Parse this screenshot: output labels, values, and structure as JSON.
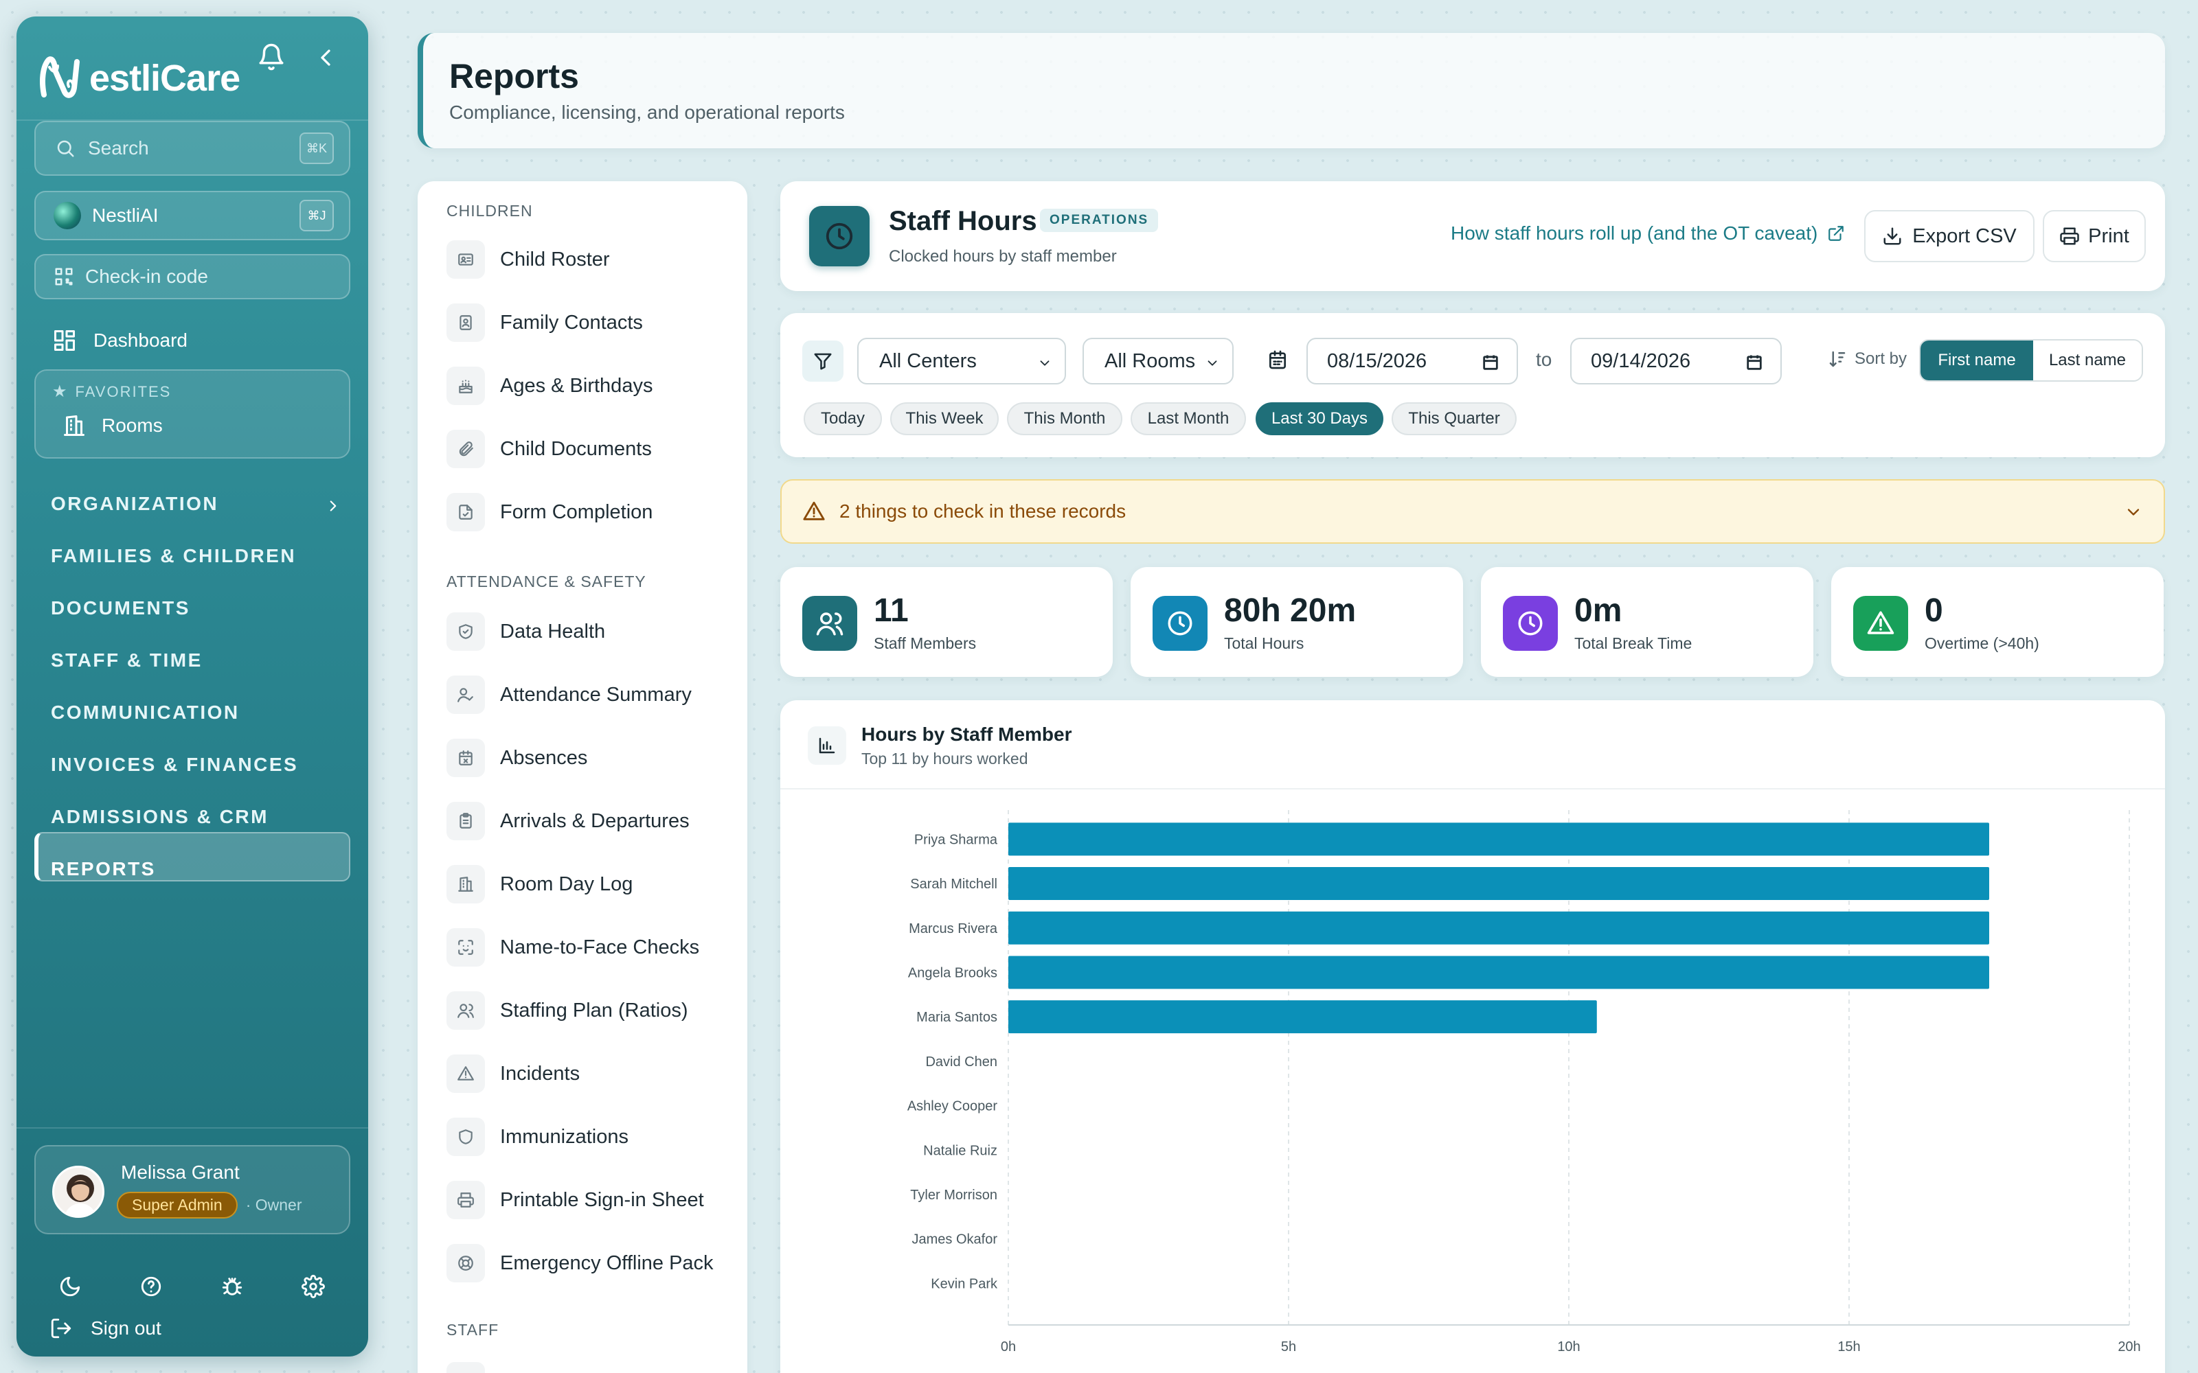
{
  "app": {
    "logo_text": "estliCare",
    "logo_mark": "N"
  },
  "sidebar": {
    "search": {
      "label": "Search",
      "shortcut": "⌘K"
    },
    "ai": {
      "label": "NestliAI",
      "shortcut": "⌘J"
    },
    "checkin": {
      "label": "Check-in code"
    },
    "dashboard": {
      "label": "Dashboard"
    },
    "favorites": {
      "title": "FAVORITES",
      "items": [
        {
          "label": "Rooms"
        }
      ]
    },
    "nav": [
      {
        "label": "ORGANIZATION"
      },
      {
        "label": "FAMILIES & CHILDREN"
      },
      {
        "label": "DOCUMENTS"
      },
      {
        "label": "STAFF & TIME"
      },
      {
        "label": "COMMUNICATION"
      },
      {
        "label": "INVOICES & FINANCES"
      },
      {
        "label": "ADMISSIONS & CRM"
      },
      {
        "label": "REPORTS"
      }
    ],
    "active_nav": "REPORTS",
    "user": {
      "name": "Melissa Grant",
      "role": "Super Admin",
      "title": "· Owner"
    },
    "signout": "Sign out"
  },
  "page": {
    "title": "Reports",
    "subtitle": "Compliance, licensing, and operational reports"
  },
  "report_list": {
    "sections": [
      {
        "title": "CHILDREN",
        "items": [
          "Child Roster",
          "Family Contacts",
          "Ages & Birthdays",
          "Child Documents",
          "Form Completion"
        ]
      },
      {
        "title": "ATTENDANCE & SAFETY",
        "items": [
          "Data Health",
          "Attendance Summary",
          "Absences",
          "Arrivals & Departures",
          "Room Day Log",
          "Name-to-Face Checks",
          "Staffing Plan (Ratios)",
          "Incidents",
          "Immunizations",
          "Printable Sign-in Sheet",
          "Emergency Offline Pack"
        ]
      },
      {
        "title": "STAFF",
        "items": []
      }
    ]
  },
  "report": {
    "title": "Staff Hours",
    "tag": "OPERATIONS",
    "subtitle": "Clocked hours by staff member",
    "help_link": "How staff hours roll up (and the OT caveat)",
    "export_label": "Export CSV",
    "print_label": "Print"
  },
  "filters": {
    "center": "All Centers",
    "room": "All Rooms",
    "date_from": "08/15/2026",
    "to_label": "to",
    "date_to": "09/14/2026",
    "sort_label": "Sort by",
    "sort_options": [
      "First name",
      "Last name"
    ],
    "sort_selected": "First name",
    "ranges": [
      "Today",
      "This Week",
      "This Month",
      "Last Month",
      "Last 30 Days",
      "This Quarter"
    ],
    "range_selected": "Last 30 Days"
  },
  "alert": {
    "text": "2 things to check in these records"
  },
  "stats": [
    {
      "value": "11",
      "label": "Staff Members",
      "icon": "users-icon",
      "color": "#1f6f79"
    },
    {
      "value": "80h 20m",
      "label": "Total Hours",
      "icon": "clock-icon",
      "color": "#1287b5"
    },
    {
      "value": "0m",
      "label": "Total Break Time",
      "icon": "clock-icon",
      "color": "#7a3fe0"
    },
    {
      "value": "0",
      "label": "Overtime (>40h)",
      "icon": "alert-icon",
      "color": "#18a05a"
    }
  ],
  "chart_card": {
    "title": "Hours by Staff Member",
    "subtitle": "Top 11 by hours worked"
  },
  "chart_data": {
    "type": "bar",
    "orientation": "horizontal",
    "categories": [
      "Priya Sharma",
      "Sarah Mitchell",
      "Marcus Rivera",
      "Angela Brooks",
      "Maria Santos",
      "David Chen",
      "Ashley Cooper",
      "Natalie Ruiz",
      "Tyler Morrison",
      "James Okafor",
      "Kevin Park"
    ],
    "values": [
      17.5,
      17.5,
      17.5,
      17.5,
      10.5,
      0,
      0,
      0,
      0,
      0,
      0
    ],
    "xlim": [
      0,
      20
    ],
    "xticks": [
      "0h",
      "5h",
      "10h",
      "15h",
      "20h"
    ],
    "color": "#0b90b8",
    "grid": "vertical dashed"
  }
}
